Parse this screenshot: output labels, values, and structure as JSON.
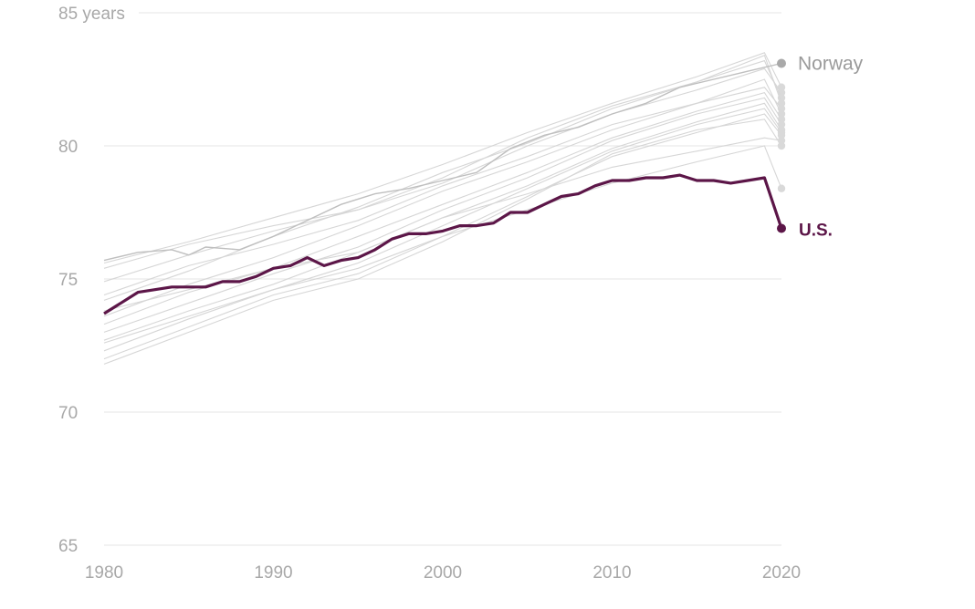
{
  "chart_data": {
    "type": "line",
    "title": "",
    "xlabel": "",
    "ylabel": "",
    "xlim": [
      1980,
      2020
    ],
    "ylim": [
      65,
      85
    ],
    "grid": true,
    "x_ticks": [
      {
        "value": 1980,
        "label": "1980"
      },
      {
        "value": 1990,
        "label": "1990"
      },
      {
        "value": 2000,
        "label": "2000"
      },
      {
        "value": 2010,
        "label": "2010"
      },
      {
        "value": 2020,
        "label": "2020"
      }
    ],
    "y_ticks": [
      {
        "value": 85,
        "label": "85 years"
      },
      {
        "value": 80,
        "label": "80"
      },
      {
        "value": 75,
        "label": "75"
      },
      {
        "value": 70,
        "label": "70"
      },
      {
        "value": 65,
        "label": "65"
      }
    ],
    "series": [
      {
        "name": "U.S.",
        "color": "#5c1648",
        "emphasis": "primary",
        "points": [
          [
            1980,
            73.7
          ],
          [
            1981,
            74.1
          ],
          [
            1982,
            74.5
          ],
          [
            1983,
            74.6
          ],
          [
            1984,
            74.7
          ],
          [
            1985,
            74.7
          ],
          [
            1986,
            74.7
          ],
          [
            1987,
            74.9
          ],
          [
            1988,
            74.9
          ],
          [
            1989,
            75.1
          ],
          [
            1990,
            75.4
          ],
          [
            1991,
            75.5
          ],
          [
            1992,
            75.8
          ],
          [
            1993,
            75.5
          ],
          [
            1994,
            75.7
          ],
          [
            1995,
            75.8
          ],
          [
            1996,
            76.1
          ],
          [
            1997,
            76.5
          ],
          [
            1998,
            76.7
          ],
          [
            1999,
            76.7
          ],
          [
            2000,
            76.8
          ],
          [
            2001,
            77.0
          ],
          [
            2002,
            77.0
          ],
          [
            2003,
            77.1
          ],
          [
            2004,
            77.5
          ],
          [
            2005,
            77.5
          ],
          [
            2006,
            77.8
          ],
          [
            2007,
            78.1
          ],
          [
            2008,
            78.2
          ],
          [
            2009,
            78.5
          ],
          [
            2010,
            78.7
          ],
          [
            2011,
            78.7
          ],
          [
            2012,
            78.8
          ],
          [
            2013,
            78.8
          ],
          [
            2014,
            78.9
          ],
          [
            2015,
            78.7
          ],
          [
            2016,
            78.7
          ],
          [
            2017,
            78.6
          ],
          [
            2018,
            78.7
          ],
          [
            2019,
            78.8
          ],
          [
            2020,
            76.9
          ]
        ]
      },
      {
        "name": "Norway",
        "color": "#bfbfbf",
        "emphasis": "secondary",
        "points": [
          [
            1980,
            75.7
          ],
          [
            1982,
            76.0
          ],
          [
            1984,
            76.1
          ],
          [
            1985,
            75.9
          ],
          [
            1986,
            76.2
          ],
          [
            1988,
            76.1
          ],
          [
            1990,
            76.6
          ],
          [
            1992,
            77.2
          ],
          [
            1994,
            77.8
          ],
          [
            1996,
            78.2
          ],
          [
            1998,
            78.4
          ],
          [
            2000,
            78.7
          ],
          [
            2002,
            79.0
          ],
          [
            2004,
            79.9
          ],
          [
            2006,
            80.4
          ],
          [
            2008,
            80.7
          ],
          [
            2010,
            81.2
          ],
          [
            2012,
            81.6
          ],
          [
            2014,
            82.2
          ],
          [
            2016,
            82.5
          ],
          [
            2018,
            82.8
          ],
          [
            2020,
            83.1
          ]
        ]
      },
      {
        "color": "#d6d6d6",
        "points": [
          [
            1980,
            75.6
          ],
          [
            1985,
            76.4
          ],
          [
            1990,
            77.3
          ],
          [
            1995,
            78.2
          ],
          [
            2000,
            79.3
          ],
          [
            2005,
            80.5
          ],
          [
            2010,
            81.6
          ],
          [
            2015,
            82.6
          ],
          [
            2019,
            83.5
          ],
          [
            2020,
            82.2
          ]
        ]
      },
      {
        "color": "#d6d6d6",
        "points": [
          [
            1980,
            75.4
          ],
          [
            1985,
            76.3
          ],
          [
            1990,
            77.0
          ],
          [
            1995,
            77.6
          ],
          [
            2000,
            78.6
          ],
          [
            2005,
            80.0
          ],
          [
            2010,
            81.2
          ],
          [
            2015,
            82.1
          ],
          [
            2019,
            82.9
          ],
          [
            2020,
            82.0
          ]
        ]
      },
      {
        "color": "#d6d6d6",
        "points": [
          [
            1980,
            74.9
          ],
          [
            1985,
            75.9
          ],
          [
            1990,
            76.8
          ],
          [
            1995,
            77.6
          ],
          [
            2000,
            78.8
          ],
          [
            2005,
            80.3
          ],
          [
            2010,
            81.5
          ],
          [
            2015,
            82.4
          ],
          [
            2019,
            83.2
          ],
          [
            2020,
            81.8
          ]
        ]
      },
      {
        "color": "#d6d6d6",
        "points": [
          [
            1980,
            74.2
          ],
          [
            1985,
            75.3
          ],
          [
            1990,
            76.6
          ],
          [
            1995,
            77.7
          ],
          [
            2000,
            79.0
          ],
          [
            2005,
            80.1
          ],
          [
            2010,
            81.4
          ],
          [
            2015,
            82.4
          ],
          [
            2019,
            83.4
          ],
          [
            2020,
            81.6
          ]
        ]
      },
      {
        "color": "#d6d6d6",
        "points": [
          [
            1980,
            74.4
          ],
          [
            1985,
            75.5
          ],
          [
            1990,
            76.3
          ],
          [
            1995,
            77.2
          ],
          [
            2000,
            78.5
          ],
          [
            2005,
            79.6
          ],
          [
            2010,
            80.8
          ],
          [
            2015,
            81.6
          ],
          [
            2019,
            82.2
          ],
          [
            2020,
            81.4
          ]
        ]
      },
      {
        "color": "#d6d6d6",
        "points": [
          [
            1980,
            73.6
          ],
          [
            1985,
            74.8
          ],
          [
            1990,
            75.8
          ],
          [
            1995,
            77.0
          ],
          [
            2000,
            78.3
          ],
          [
            2005,
            79.4
          ],
          [
            2010,
            80.6
          ],
          [
            2015,
            81.6
          ],
          [
            2019,
            82.5
          ],
          [
            2020,
            81.2
          ]
        ]
      },
      {
        "color": "#d6d6d6",
        "points": [
          [
            1980,
            73.3
          ],
          [
            1985,
            74.5
          ],
          [
            1990,
            75.4
          ],
          [
            1995,
            76.6
          ],
          [
            2000,
            77.8
          ],
          [
            2005,
            79.0
          ],
          [
            2010,
            80.3
          ],
          [
            2015,
            81.3
          ],
          [
            2019,
            82.0
          ],
          [
            2020,
            81.0
          ]
        ]
      },
      {
        "color": "#d6d6d6",
        "points": [
          [
            1980,
            73.0
          ],
          [
            1985,
            74.1
          ],
          [
            1990,
            75.2
          ],
          [
            1995,
            76.2
          ],
          [
            2000,
            77.6
          ],
          [
            2005,
            78.8
          ],
          [
            2010,
            80.2
          ],
          [
            2015,
            81.2
          ],
          [
            2019,
            81.8
          ],
          [
            2020,
            80.8
          ]
        ]
      },
      {
        "color": "#d6d6d6",
        "points": [
          [
            1980,
            72.7
          ],
          [
            1985,
            73.8
          ],
          [
            1990,
            74.8
          ],
          [
            1995,
            76.0
          ],
          [
            2000,
            77.3
          ],
          [
            2005,
            78.5
          ],
          [
            2010,
            79.9
          ],
          [
            2015,
            80.9
          ],
          [
            2019,
            81.6
          ],
          [
            2020,
            80.6
          ]
        ]
      },
      {
        "color": "#d6d6d6",
        "points": [
          [
            1980,
            72.3
          ],
          [
            1985,
            73.5
          ],
          [
            1990,
            74.6
          ],
          [
            1995,
            75.6
          ],
          [
            2000,
            77.0
          ],
          [
            2005,
            78.4
          ],
          [
            2010,
            79.8
          ],
          [
            2015,
            80.8
          ],
          [
            2019,
            81.4
          ],
          [
            2020,
            80.5
          ]
        ]
      },
      {
        "color": "#d6d6d6",
        "points": [
          [
            1980,
            72.0
          ],
          [
            1985,
            73.2
          ],
          [
            1990,
            74.4
          ],
          [
            1995,
            75.2
          ],
          [
            2000,
            76.6
          ],
          [
            2005,
            78.1
          ],
          [
            2010,
            79.6
          ],
          [
            2015,
            80.5
          ],
          [
            2019,
            81.2
          ],
          [
            2020,
            80.4
          ]
        ]
      },
      {
        "color": "#d6d6d6",
        "points": [
          [
            1980,
            71.8
          ],
          [
            1985,
            73.0
          ],
          [
            1990,
            74.2
          ],
          [
            1995,
            75.0
          ],
          [
            2000,
            76.4
          ],
          [
            2005,
            78.0
          ],
          [
            2010,
            79.7
          ],
          [
            2015,
            80.6
          ],
          [
            2019,
            81.0
          ],
          [
            2020,
            80.0
          ]
        ]
      },
      {
        "color": "#d6d6d6",
        "points": [
          [
            1980,
            73.8
          ],
          [
            1985,
            74.6
          ],
          [
            1990,
            75.4
          ],
          [
            1995,
            76.0
          ],
          [
            2000,
            77.3
          ],
          [
            2005,
            78.2
          ],
          [
            2010,
            79.2
          ],
          [
            2015,
            79.8
          ],
          [
            2019,
            80.3
          ],
          [
            2020,
            80.2
          ]
        ]
      },
      {
        "color": "#d6d6d6",
        "points": [
          [
            1980,
            72.6
          ],
          [
            1985,
            73.6
          ],
          [
            1990,
            74.6
          ],
          [
            1995,
            75.4
          ],
          [
            2000,
            76.6
          ],
          [
            2005,
            77.6
          ],
          [
            2010,
            78.6
          ],
          [
            2015,
            79.4
          ],
          [
            2019,
            80.0
          ],
          [
            2020,
            78.4
          ]
        ]
      }
    ],
    "labels": {
      "norway": "Norway",
      "us": "U.S."
    }
  }
}
